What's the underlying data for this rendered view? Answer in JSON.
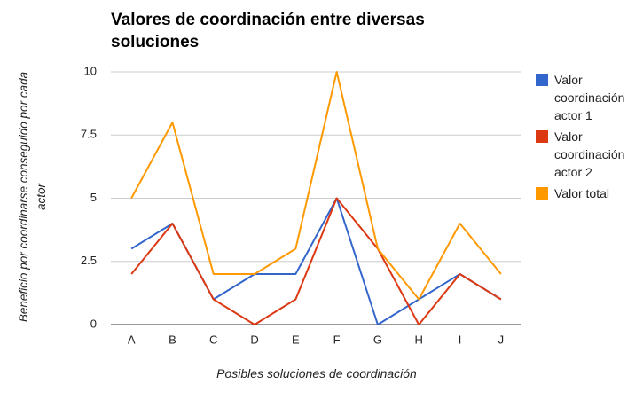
{
  "chart_data": {
    "type": "line",
    "title": "Valores de coordinación entre diversas soluciones",
    "x_label": "Posibles soluciones de coordinación",
    "y_label": "Beneficio por coordinarse conseguido por cada actor",
    "categories": [
      "A",
      "B",
      "C",
      "D",
      "E",
      "F",
      "G",
      "H",
      "I",
      "J"
    ],
    "series": [
      {
        "name": "Valor coordinación actor 1",
        "color": "#3366cc",
        "values": [
          3,
          4,
          1,
          2,
          2,
          5,
          0,
          1,
          2,
          1
        ]
      },
      {
        "name": "Valor coordinación actor 2",
        "color": "#dc3912",
        "values": [
          2,
          4,
          1,
          0,
          1,
          5,
          3,
          0,
          2,
          1
        ]
      },
      {
        "name": "Valor total",
        "color": "#ff9900",
        "values": [
          5,
          8,
          2,
          2,
          3,
          10,
          3,
          1,
          4,
          2
        ]
      }
    ],
    "ylim": [
      0,
      10
    ],
    "yticks": [
      0,
      2.5,
      5,
      7.5,
      10
    ],
    "grid": true,
    "legend": "right"
  }
}
